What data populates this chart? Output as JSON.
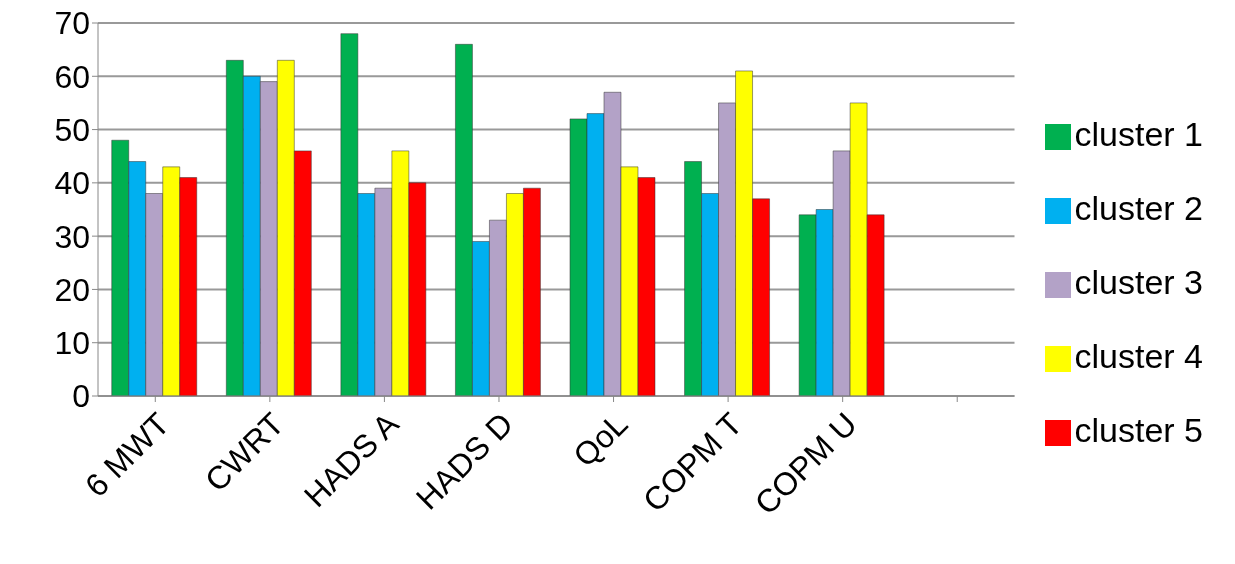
{
  "chart_data": {
    "type": "bar",
    "categories": [
      "6 MWT",
      "CWRT",
      "HADS A",
      "HADS D",
      "QoL",
      "COPM T",
      "COPM U",
      null
    ],
    "series": [
      {
        "name": "cluster 1",
        "color": "#00b050",
        "values": [
          48,
          63,
          68,
          66,
          52,
          44,
          34,
          null
        ]
      },
      {
        "name": "cluster 2",
        "color": "#00b0f0",
        "values": [
          44,
          60,
          38,
          29,
          53,
          38,
          35,
          null
        ]
      },
      {
        "name": "cluster 3",
        "color": "#b3a2c7",
        "values": [
          38,
          59,
          39,
          33,
          57,
          55,
          46,
          null
        ]
      },
      {
        "name": "cluster 4",
        "color": "#ffff00",
        "values": [
          43,
          63,
          46,
          38,
          43,
          61,
          55,
          null
        ]
      },
      {
        "name": "cluster 5",
        "color": "#ff0000",
        "values": [
          41,
          46,
          40,
          39,
          41,
          37,
          34,
          null
        ]
      }
    ],
    "ylim": [
      0,
      70
    ],
    "yticks": [
      0,
      10,
      20,
      30,
      40,
      50,
      60,
      70
    ],
    "grid": "y",
    "legend": "right"
  }
}
